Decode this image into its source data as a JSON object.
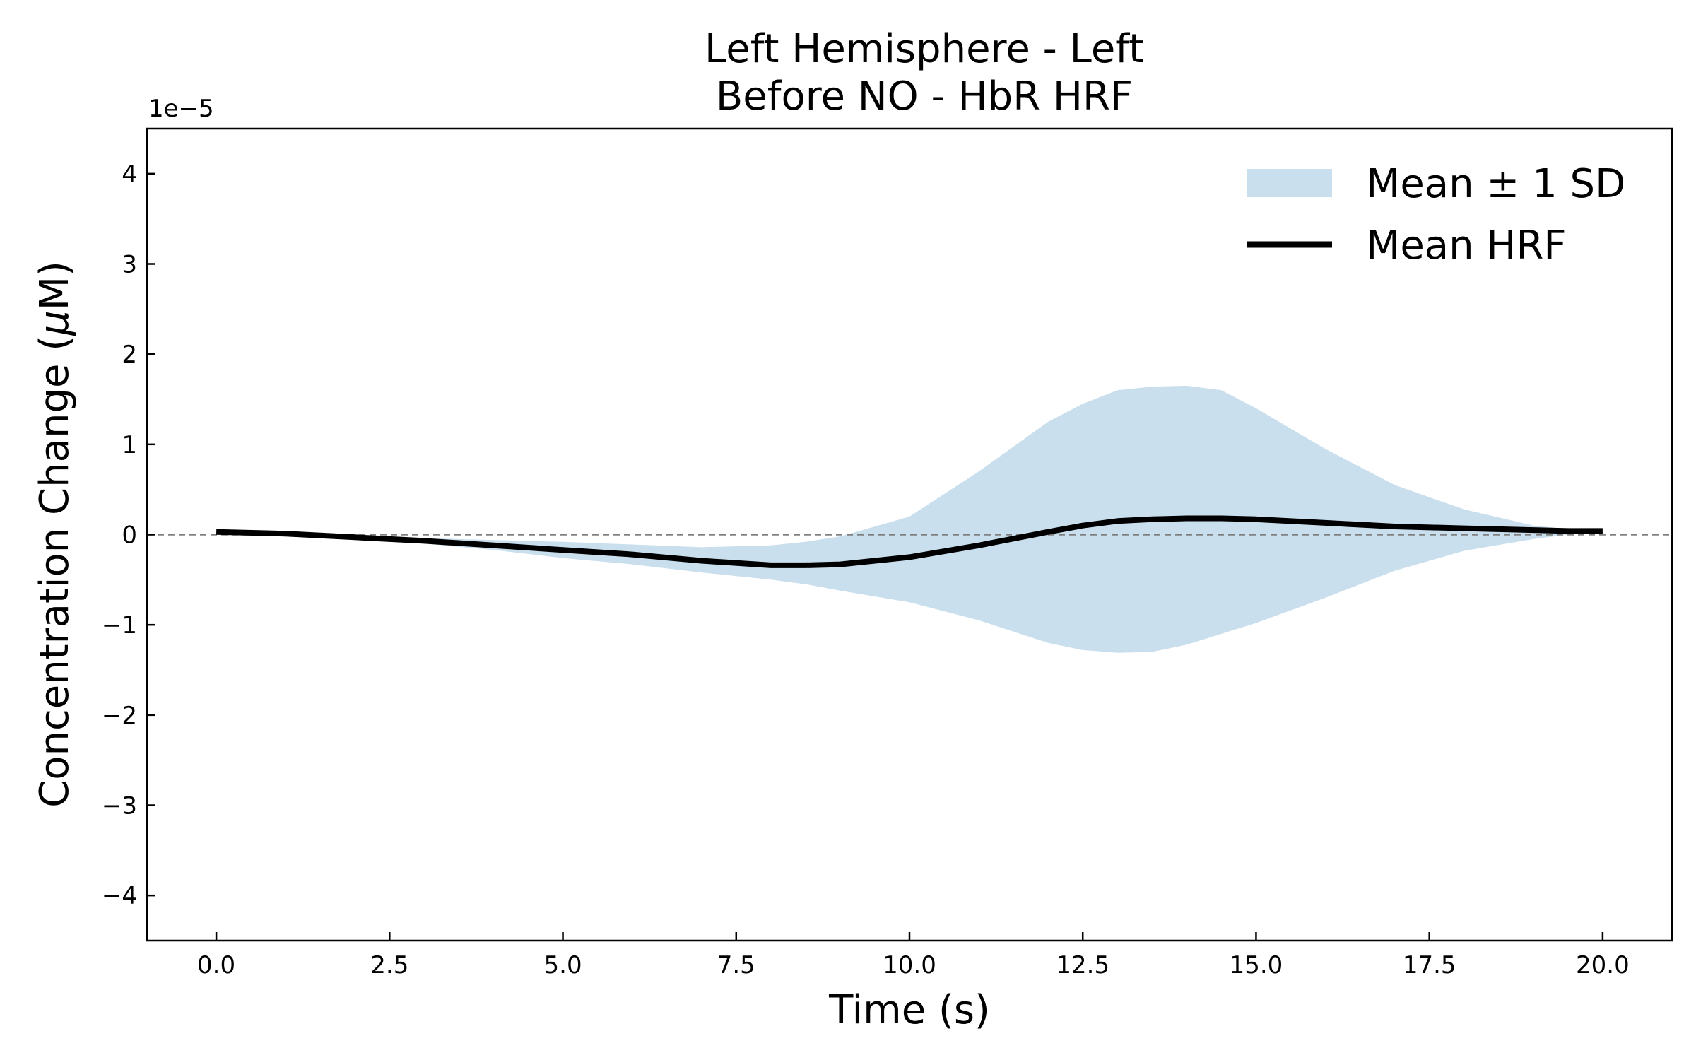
{
  "chart_data": {
    "type": "area",
    "title_lines": [
      "Left Hemisphere - Left",
      "Before NO - HbR  HRF"
    ],
    "xlabel": "Time (s)",
    "ylabel_prefix": "Concentration Change (",
    "ylabel_mu": "μ",
    "ylabel_suffix": "M)",
    "y_offset_label": "1e−5",
    "xlim": [
      -1.0,
      21.0
    ],
    "ylim": [
      -4.5,
      4.5
    ],
    "x_ticks": [
      0,
      2.5,
      5,
      7.5,
      10,
      12.5,
      15,
      17.5,
      20
    ],
    "x_tick_labels": [
      "0.0",
      "2.5",
      "5.0",
      "7.5",
      "10.0",
      "12.5",
      "15.0",
      "17.5",
      "20.0"
    ],
    "y_ticks": [
      -4,
      -3,
      -2,
      -1,
      0,
      1,
      2,
      3,
      4
    ],
    "y_tick_labels": [
      "−4",
      "−3",
      "−2",
      "−1",
      "0",
      "1",
      "2",
      "3",
      "4"
    ],
    "reference_line_y": 0,
    "legend_position": "upper right",
    "x": [
      0,
      1,
      2,
      3,
      4,
      5,
      6,
      7,
      8,
      8.5,
      9,
      10,
      11,
      12,
      12.5,
      13,
      13.5,
      14,
      14.5,
      15,
      16,
      17,
      18,
      19,
      19.5,
      20
    ],
    "series": [
      {
        "name": "Mean HRF",
        "color": "#000000",
        "values": [
          0.03,
          0.01,
          -0.03,
          -0.07,
          -0.12,
          -0.17,
          -0.22,
          -0.29,
          -0.34,
          -0.34,
          -0.33,
          -0.25,
          -0.12,
          0.03,
          0.1,
          0.15,
          0.17,
          0.18,
          0.18,
          0.17,
          0.13,
          0.09,
          0.07,
          0.05,
          0.04,
          0.04
        ]
      },
      {
        "name": "Mean ± 1 SD",
        "color": "#c9dfed",
        "upper": [
          0.03,
          0.01,
          -0.02,
          -0.04,
          -0.06,
          -0.08,
          -0.11,
          -0.14,
          -0.12,
          -0.08,
          -0.02,
          0.2,
          0.7,
          1.25,
          1.45,
          1.6,
          1.64,
          1.65,
          1.6,
          1.4,
          0.95,
          0.55,
          0.28,
          0.1,
          0.06,
          0.04
        ],
        "lower": [
          0.03,
          0.01,
          -0.05,
          -0.1,
          -0.17,
          -0.26,
          -0.33,
          -0.42,
          -0.5,
          -0.55,
          -0.62,
          -0.75,
          -0.95,
          -1.2,
          -1.28,
          -1.31,
          -1.3,
          -1.22,
          -1.1,
          -0.98,
          -0.7,
          -0.4,
          -0.18,
          -0.05,
          0.0,
          0.03
        ]
      }
    ]
  }
}
